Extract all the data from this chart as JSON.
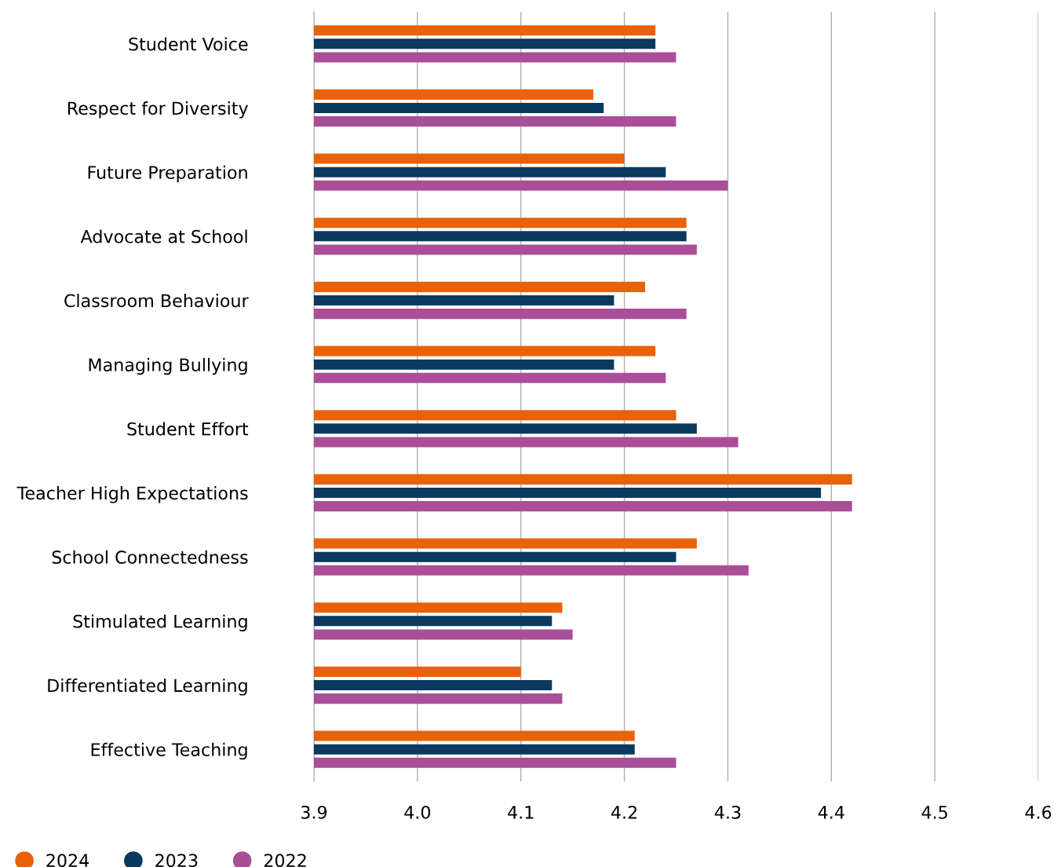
{
  "chart_data": {
    "type": "bar",
    "orientation": "horizontal",
    "categories": [
      "Student Voice",
      "Respect for Diversity",
      "Future Preparation",
      "Advocate at School",
      "Classroom Behaviour",
      "Managing Bullying",
      "Student Effort",
      "Teacher High Expectations",
      "School Connectedness",
      "Stimulated Learning",
      "Differentiated Learning",
      "Effective Teaching"
    ],
    "series": [
      {
        "name": "2024",
        "color": "#e8620a",
        "values": [
          4.23,
          4.17,
          4.2,
          4.26,
          4.22,
          4.23,
          4.25,
          4.42,
          4.27,
          4.14,
          4.1,
          4.21
        ]
      },
      {
        "name": "2023",
        "color": "#0b3a5e",
        "values": [
          4.23,
          4.18,
          4.24,
          4.26,
          4.19,
          4.19,
          4.27,
          4.39,
          4.25,
          4.13,
          4.13,
          4.21
        ]
      },
      {
        "name": "2022",
        "color": "#ab4e98",
        "values": [
          4.25,
          4.25,
          4.3,
          4.27,
          4.26,
          4.24,
          4.31,
          4.42,
          4.32,
          4.15,
          4.14,
          4.25
        ]
      }
    ],
    "xlim": [
      3.9,
      4.6
    ],
    "xticks": [
      {
        "value": 3.9,
        "label": "3.9"
      },
      {
        "value": 4.0,
        "label": "4.0"
      },
      {
        "value": 4.1,
        "label": "4.1"
      },
      {
        "value": 4.2,
        "label": "4.2"
      },
      {
        "value": 4.3,
        "label": "4.3"
      },
      {
        "value": 4.4,
        "label": "4.4"
      },
      {
        "value": 4.5,
        "label": "4.5"
      },
      {
        "value": 4.6,
        "label": "4.6"
      }
    ],
    "grid": "x",
    "legend": "bottom left"
  }
}
